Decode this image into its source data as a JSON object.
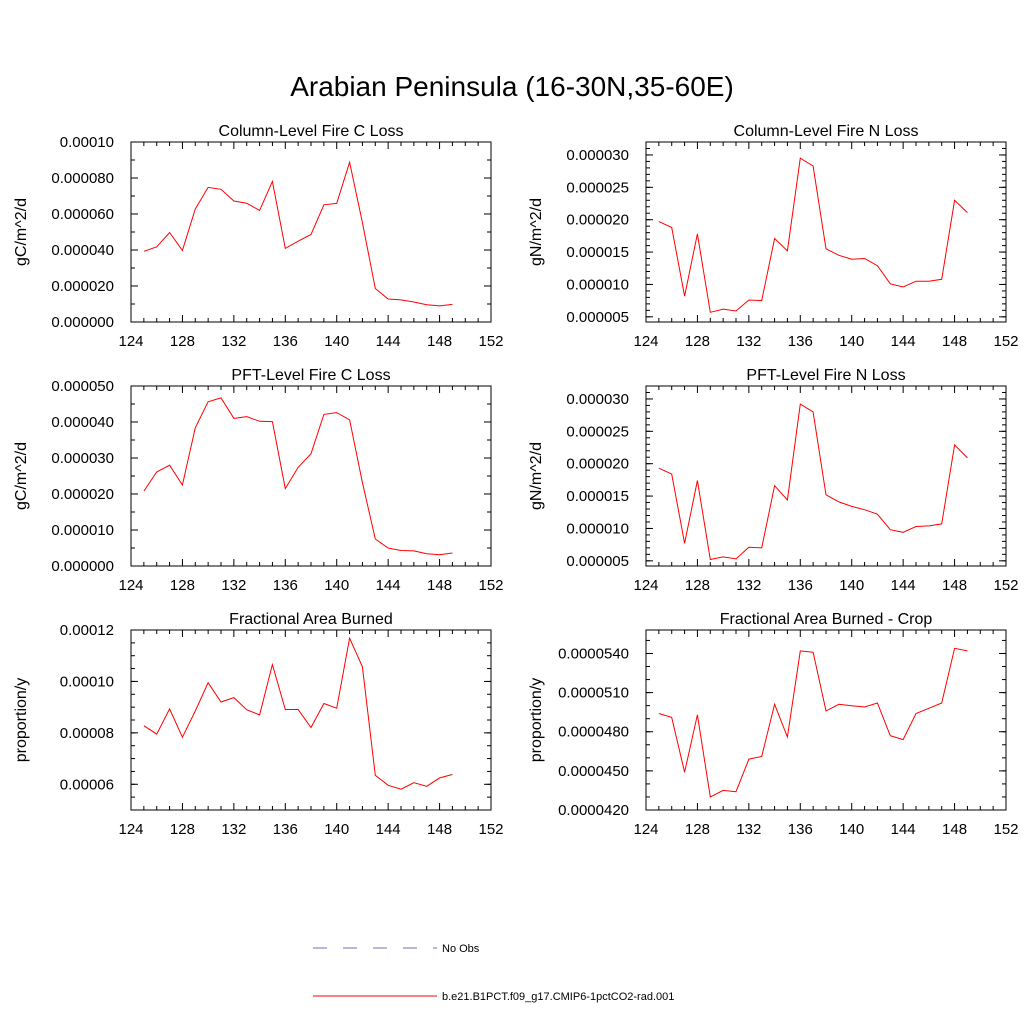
{
  "title": "Arabian Peninsula (16-30N,35-60E)",
  "colors": {
    "series": "#ff0000",
    "obs": "#6f6fb0"
  },
  "legend": {
    "entries": [
      {
        "label": "No Obs",
        "style": "dashed"
      },
      {
        "label": "b.e21.B1PCT.f09_g17.CMIP6-1pctCO2-rad.001",
        "style": "solid"
      }
    ]
  },
  "chart_data": [
    {
      "type": "line",
      "title": "Column-Level Fire C Loss",
      "ylabel": "gC/m^2/d",
      "xlim": [
        124,
        152
      ],
      "xticks": [
        "124",
        "128",
        "132",
        "136",
        "140",
        "144",
        "148",
        "152"
      ],
      "ylim": [
        0,
        0.0001
      ],
      "yticks": [
        "0.000000",
        "0.000020",
        "0.000040",
        "0.000060",
        "0.000080",
        "0.00010"
      ],
      "yminor": 1e-05,
      "x": [
        125,
        126,
        127,
        128,
        129,
        130,
        131,
        132,
        133,
        134,
        135,
        136,
        137,
        138,
        139,
        140,
        141,
        142,
        143,
        144,
        145,
        146,
        147,
        148,
        149
      ],
      "series": [
        {
          "name": "b.e21.B1PCT.f09_g17.CMIP6-1pctCO2-rad.001",
          "values": [
            3.93e-05,
            4.18e-05,
            4.97e-05,
            3.98e-05,
            6.28e-05,
            7.48e-05,
            7.37e-05,
            6.72e-05,
            6.6e-05,
            6.2e-05,
            7.81e-05,
            4.09e-05,
            4.49e-05,
            4.86e-05,
            6.51e-05,
            6.59e-05,
            8.88e-05,
            5.53e-05,
            1.86e-05,
            1.28e-05,
            1.23e-05,
            1.11e-05,
            9.61e-06,
            8.97e-06,
            9.8e-06
          ]
        }
      ]
    },
    {
      "type": "line",
      "title": "Column-Level Fire N Loss",
      "ylabel": "gN/m^2/d",
      "xlim": [
        124,
        152
      ],
      "xticks": [
        "124",
        "128",
        "132",
        "136",
        "140",
        "144",
        "148",
        "152"
      ],
      "ylim": [
        4.2e-06,
        3.2e-05
      ],
      "yticks": [
        "0.000005",
        "0.000010",
        "0.000015",
        "0.000020",
        "0.000025",
        "0.000030"
      ],
      "yminor": 1e-06,
      "x": [
        125,
        126,
        127,
        128,
        129,
        130,
        131,
        132,
        133,
        134,
        135,
        136,
        137,
        138,
        139,
        140,
        141,
        142,
        143,
        144,
        145,
        146,
        147,
        148,
        149
      ],
      "series": [
        {
          "name": "b.e21.B1PCT.f09_g17.CMIP6-1pctCO2-rad.001",
          "values": [
            1.97e-05,
            1.88e-05,
            8.2e-06,
            1.78e-05,
            5.7e-06,
            6.2e-06,
            5.9e-06,
            7.6e-06,
            7.5e-06,
            1.71e-05,
            1.52e-05,
            2.95e-05,
            2.83e-05,
            1.55e-05,
            1.45e-05,
            1.39e-05,
            1.4e-05,
            1.29e-05,
            1.01e-05,
            9.6e-06,
            1.05e-05,
            1.05e-05,
            1.08e-05,
            2.3e-05,
            2.11e-05
          ]
        }
      ]
    },
    {
      "type": "line",
      "title": "PFT-Level Fire C Loss",
      "ylabel": "gC/m^2/d",
      "xlim": [
        124,
        152
      ],
      "xticks": [
        "124",
        "128",
        "132",
        "136",
        "140",
        "144",
        "148",
        "152"
      ],
      "ylim": [
        0,
        5e-05
      ],
      "yticks": [
        "0.000000",
        "0.000010",
        "0.000020",
        "0.000030",
        "0.000040",
        "0.000050"
      ],
      "yminor": 5e-06,
      "x": [
        125,
        126,
        127,
        128,
        129,
        130,
        131,
        132,
        133,
        134,
        135,
        136,
        137,
        138,
        139,
        140,
        141,
        142,
        143,
        144,
        145,
        146,
        147,
        148,
        149
      ],
      "series": [
        {
          "name": "b.e21.B1PCT.f09_g17.CMIP6-1pctCO2-rad.001",
          "values": [
            2.08e-05,
            2.61e-05,
            2.8e-05,
            2.25e-05,
            3.84e-05,
            4.56e-05,
            4.67e-05,
            4.1e-05,
            4.15e-05,
            4.02e-05,
            4.01e-05,
            2.15e-05,
            2.74e-05,
            3.12e-05,
            4.21e-05,
            4.26e-05,
            4.06e-05,
            2.32e-05,
            7.5e-06,
            5e-06,
            4.3e-06,
            4.2e-06,
            3.4e-06,
            3.1e-06,
            3.6e-06
          ]
        }
      ]
    },
    {
      "type": "line",
      "title": "PFT-Level Fire N Loss",
      "ylabel": "gN/m^2/d",
      "xlim": [
        124,
        152
      ],
      "xticks": [
        "124",
        "128",
        "132",
        "136",
        "140",
        "144",
        "148",
        "152"
      ],
      "ylim": [
        4.2e-06,
        3.2e-05
      ],
      "yticks": [
        "0.000005",
        "0.000010",
        "0.000015",
        "0.000020",
        "0.000025",
        "0.000030"
      ],
      "yminor": 1e-06,
      "x": [
        125,
        126,
        127,
        128,
        129,
        130,
        131,
        132,
        133,
        134,
        135,
        136,
        137,
        138,
        139,
        140,
        141,
        142,
        143,
        144,
        145,
        146,
        147,
        148,
        149
      ],
      "series": [
        {
          "name": "b.e21.B1PCT.f09_g17.CMIP6-1pctCO2-rad.001",
          "values": [
            1.93e-05,
            1.84e-05,
            7.7e-06,
            1.74e-05,
            5.2e-06,
            5.6e-06,
            5.3e-06,
            7.1e-06,
            7e-06,
            1.66e-05,
            1.44e-05,
            2.92e-05,
            2.8e-05,
            1.52e-05,
            1.41e-05,
            1.34e-05,
            1.29e-05,
            1.22e-05,
            9.8e-06,
            9.4e-06,
            1.03e-05,
            1.04e-05,
            1.07e-05,
            2.29e-05,
            2.09e-05
          ]
        }
      ]
    },
    {
      "type": "line",
      "title": "Fractional Area Burned",
      "ylabel": "proportion/y",
      "xlim": [
        124,
        152
      ],
      "xticks": [
        "124",
        "128",
        "132",
        "136",
        "140",
        "144",
        "148",
        "152"
      ],
      "ylim": [
        5e-05,
        0.00012
      ],
      "yticks": [
        "0.00006",
        "0.00008",
        "0.00010",
        "0.00012"
      ],
      "yminor": 5e-06,
      "x": [
        125,
        126,
        127,
        128,
        129,
        130,
        131,
        132,
        133,
        134,
        135,
        136,
        137,
        138,
        139,
        140,
        141,
        142,
        143,
        144,
        145,
        146,
        147,
        148,
        149
      ],
      "series": [
        {
          "name": "b.e21.B1PCT.f09_g17.CMIP6-1pctCO2-rad.001",
          "values": [
            8.28e-05,
            7.95e-05,
            8.93e-05,
            7.83e-05,
            8.85e-05,
            9.95e-05,
            9.2e-05,
            9.37e-05,
            8.9e-05,
            8.7e-05,
            0.0001066,
            8.91e-05,
            8.91e-05,
            8.21e-05,
            9.14e-05,
            8.96e-05,
            0.0001168,
            0.0001057,
            6.35e-05,
            5.96e-05,
            5.81e-05,
            6.06e-05,
            5.92e-05,
            6.25e-05,
            6.38e-05
          ]
        }
      ]
    },
    {
      "type": "line",
      "title": "Fractional Area Burned - Crop",
      "ylabel": "proportion/y",
      "xlim": [
        124,
        152
      ],
      "xticks": [
        "124",
        "128",
        "132",
        "136",
        "140",
        "144",
        "148",
        "152"
      ],
      "ylim": [
        4.2e-05,
        5.58e-05
      ],
      "yticks": [
        "0.0000420",
        "0.0000450",
        "0.0000480",
        "0.0000510",
        "0.0000540"
      ],
      "yminor": 1e-06,
      "x": [
        125,
        126,
        127,
        128,
        129,
        130,
        131,
        132,
        133,
        134,
        135,
        136,
        137,
        138,
        139,
        140,
        141,
        142,
        143,
        144,
        145,
        146,
        147,
        148,
        149
      ],
      "series": [
        {
          "name": "b.e21.B1PCT.f09_g17.CMIP6-1pctCO2-rad.001",
          "values": [
            4.94e-05,
            4.91e-05,
            4.49e-05,
            4.93e-05,
            4.3e-05,
            4.35e-05,
            4.34e-05,
            4.59e-05,
            4.61e-05,
            5.01e-05,
            4.76e-05,
            5.42e-05,
            5.41e-05,
            4.96e-05,
            5.01e-05,
            5e-05,
            4.99e-05,
            5.02e-05,
            4.77e-05,
            4.74e-05,
            4.94e-05,
            4.98e-05,
            5.02e-05,
            5.44e-05,
            5.42e-05
          ]
        }
      ]
    }
  ]
}
